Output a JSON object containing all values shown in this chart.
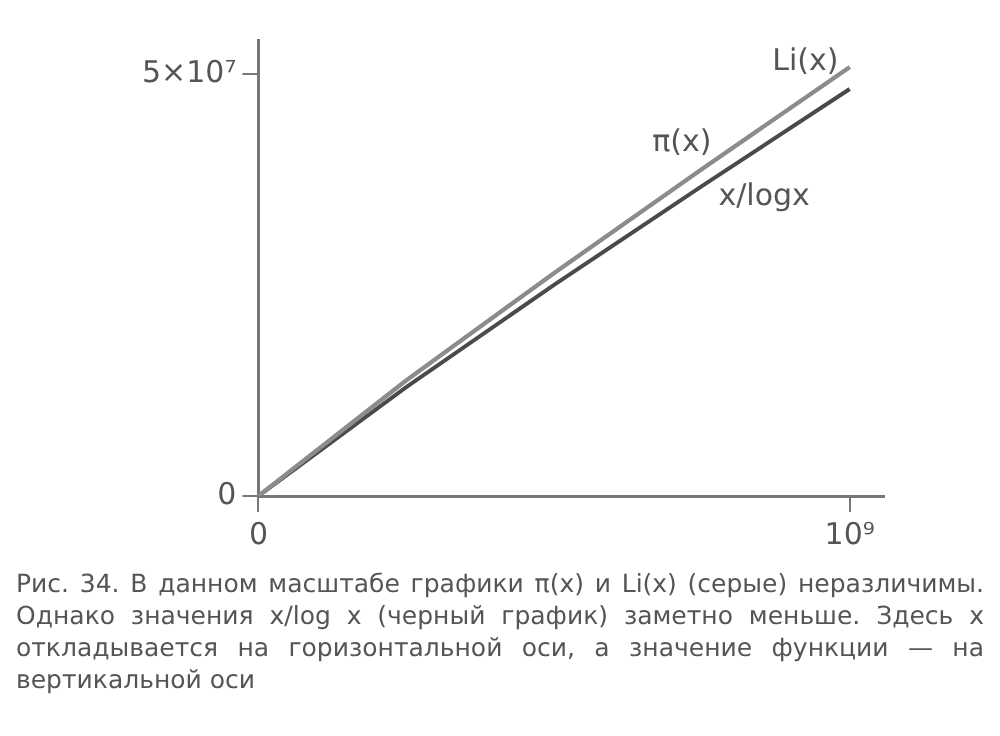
{
  "chart_data": {
    "type": "line",
    "annotations": [
      "Рис. 34. В данном масштабе графики π(x) и Li(x) (серые) неразличимы. Однако значения x/log x (черный график) заметно меньше. Здесь x откладывается на горизонтальной оси, а значение функции — на вертикальной оси"
    ],
    "x": [
      0,
      250000000,
      500000000,
      750000000,
      1000000000
    ],
    "series": [
      {
        "name": "Li(x)",
        "color": "#8c8c8c",
        "values": [
          0,
          13700000,
          26400000,
          38700000,
          50800000
        ]
      },
      {
        "name": "π(x)",
        "color": "#8c8c8c",
        "values": [
          0,
          13700000,
          26400000,
          38700000,
          50800000
        ]
      },
      {
        "name": "x/logx",
        "color": "#4a4a4a",
        "values": [
          0,
          12900000,
          25000000,
          36700000,
          48200000
        ]
      }
    ],
    "xlim": [
      0,
      1058000000
    ],
    "ylim": [
      0,
      54000000
    ],
    "xticks": [
      0,
      {
        "value": 1000000000,
        "label": "10⁹"
      }
    ],
    "yticks": [
      0,
      {
        "value": 50000000,
        "label": "5×10⁷"
      }
    ],
    "grid": false,
    "legend": false,
    "marker": "none",
    "line_style": "solid"
  }
}
